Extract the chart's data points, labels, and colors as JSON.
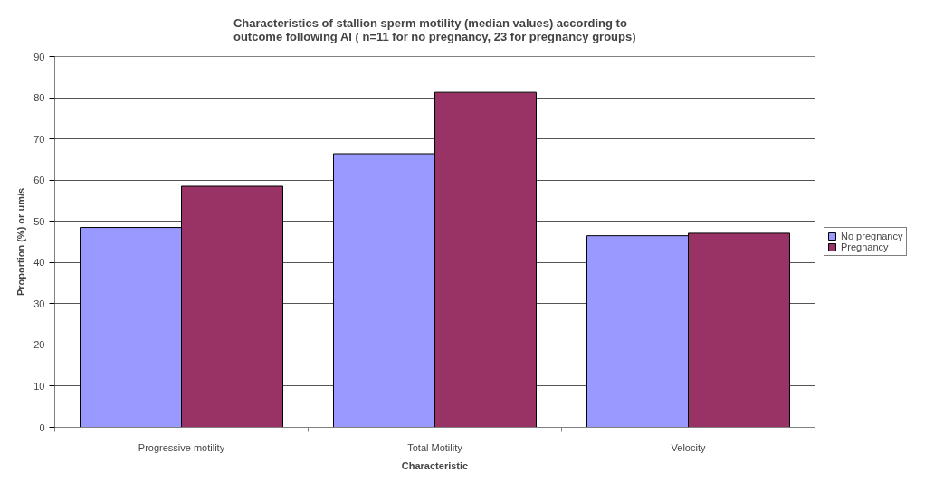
{
  "chart_data": {
    "type": "bar",
    "title": "Characteristics of stallion sperm motility (median values) according to\noutcome following AI ( n=11 for no pregnancy, 23 for pregnancy groups)",
    "xlabel": "Characteristic",
    "ylabel": "Proportion (%) or um/s",
    "categories": [
      "Progressive motility",
      "Total Motility",
      "Velocity"
    ],
    "series": [
      {
        "name": "No pregnancy",
        "color": "#9999ff",
        "values": [
          48.5,
          66.4,
          46.5
        ]
      },
      {
        "name": "Pregnancy",
        "color": "#993366",
        "values": [
          58.5,
          81.3,
          47.1
        ]
      }
    ],
    "ylim": [
      0,
      90
    ],
    "yticks": [
      0,
      10,
      20,
      30,
      40,
      50,
      60,
      70,
      80,
      90
    ],
    "grid": "y",
    "legend": "right"
  }
}
